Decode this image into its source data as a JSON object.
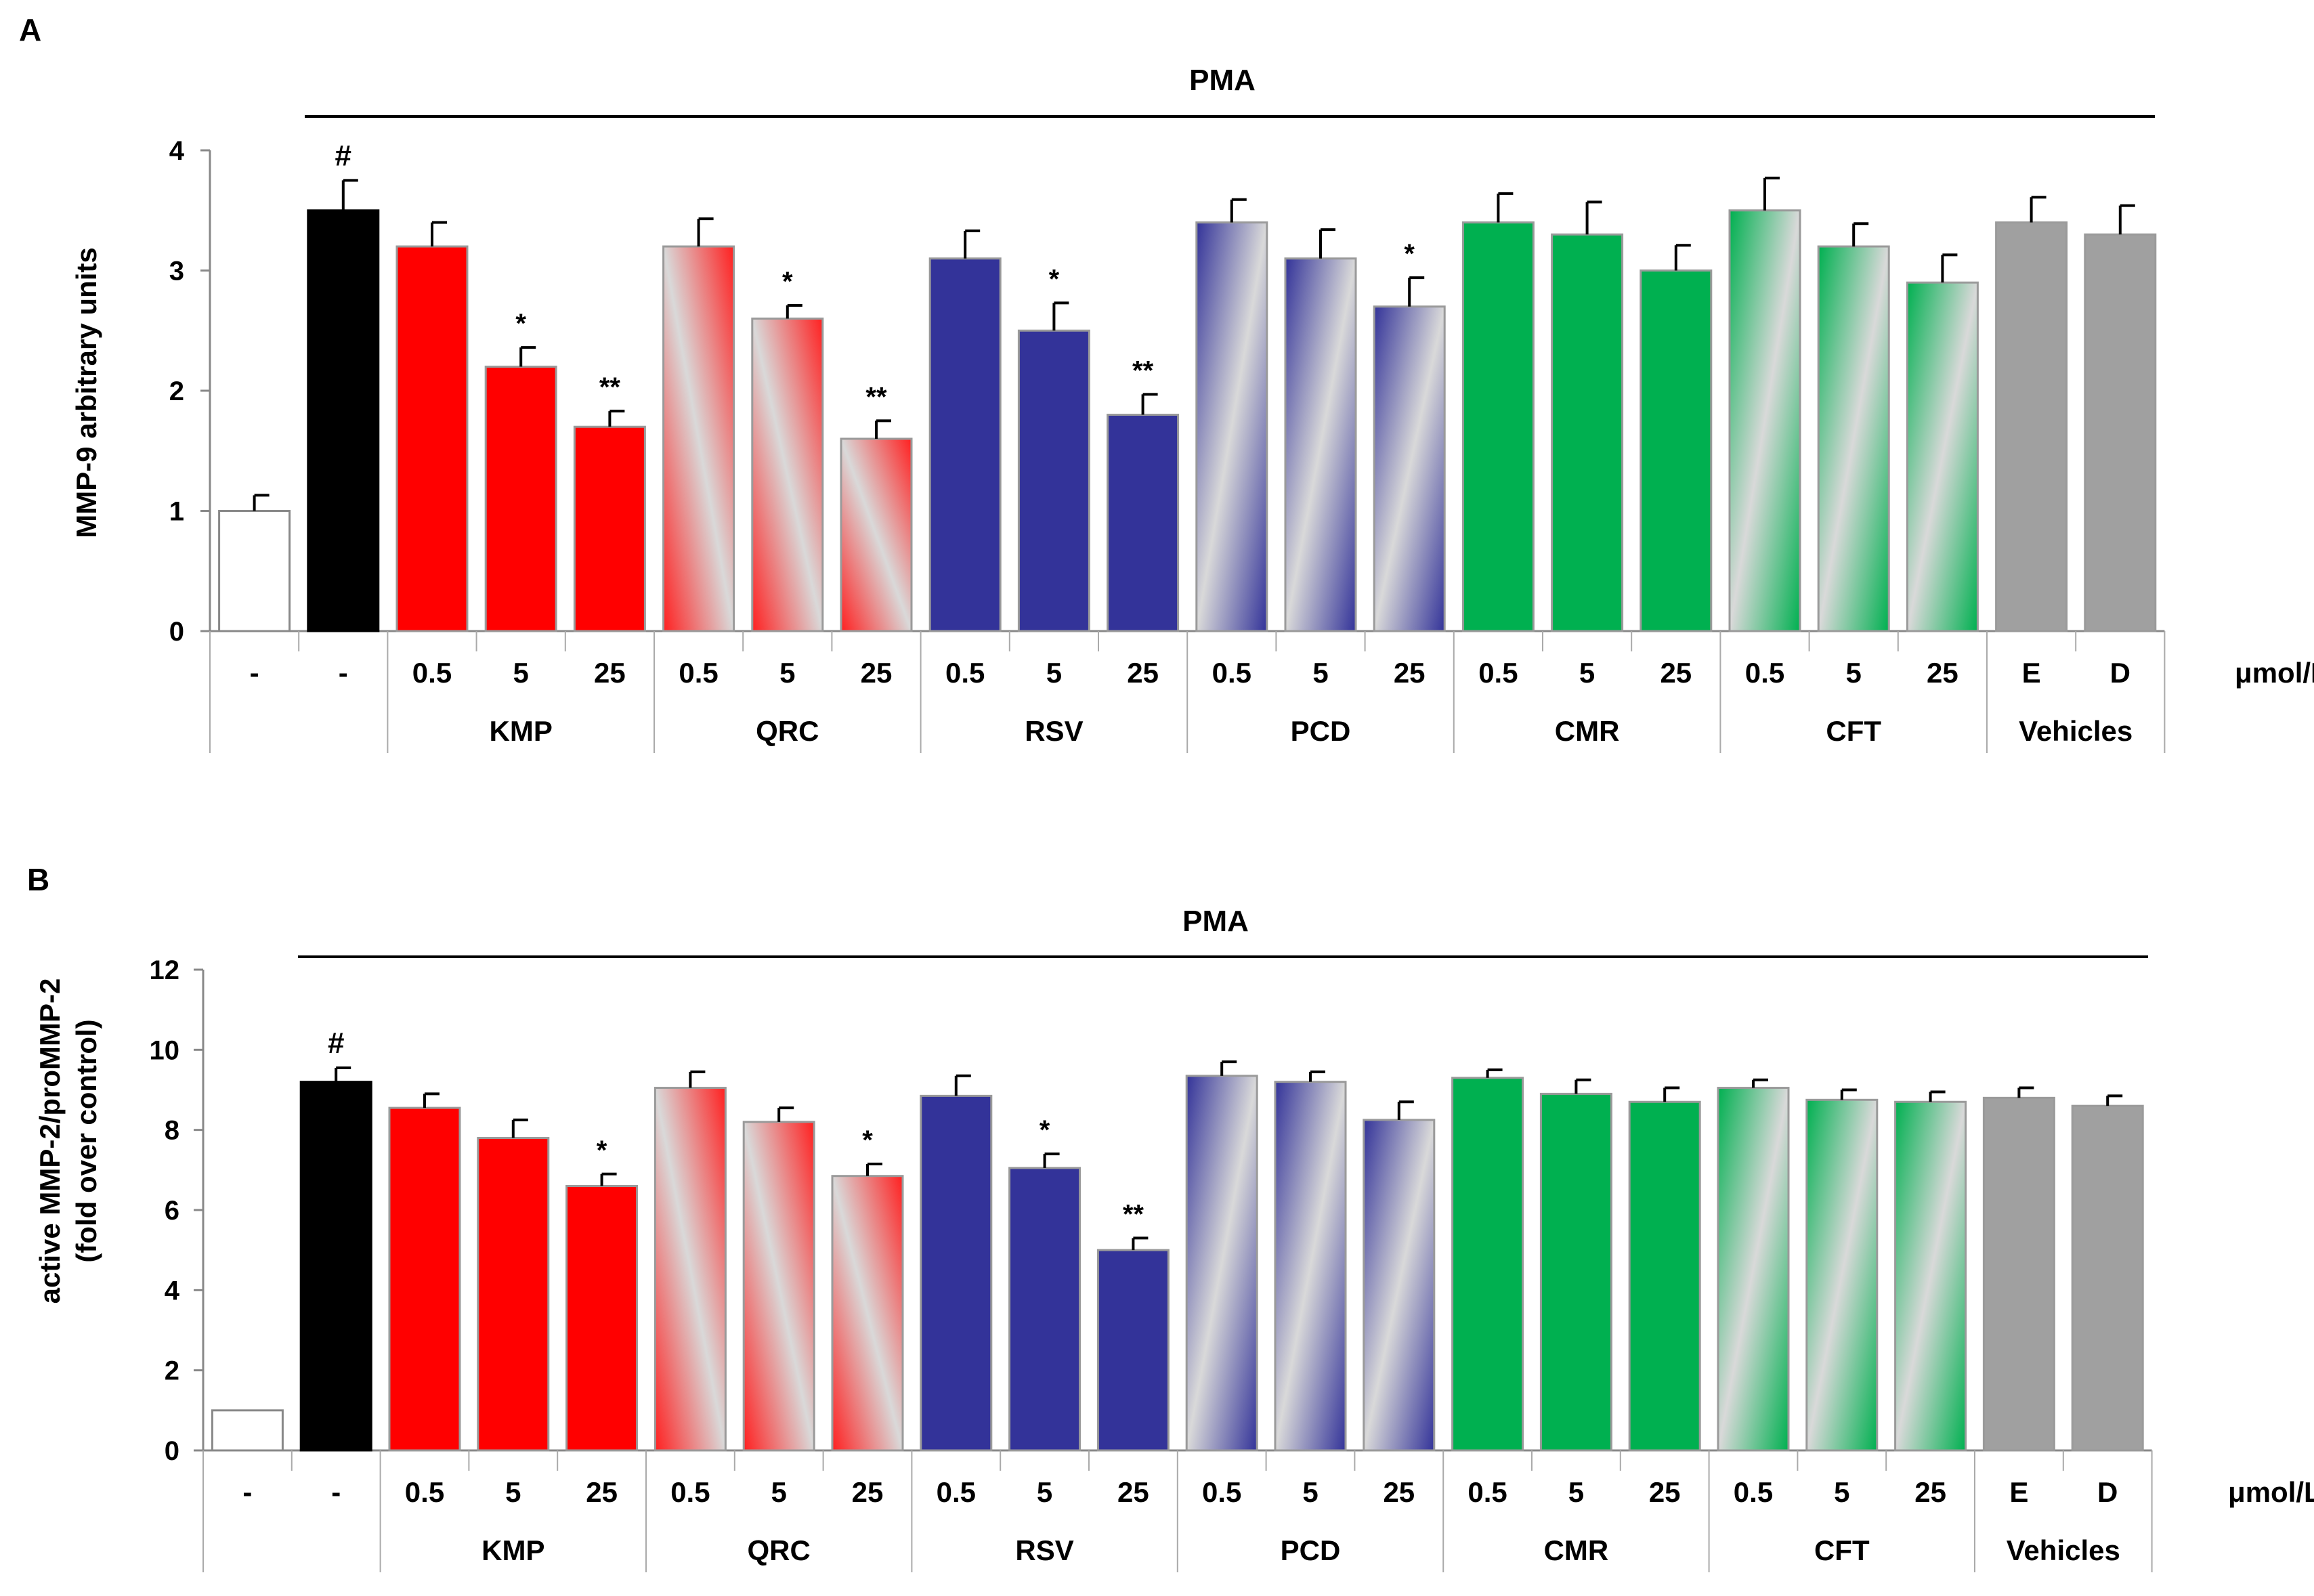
{
  "chart_data": [
    {
      "panel_label": "A",
      "type": "bar",
      "title": "PMA",
      "ylabel": "MMP-9 arbitrary units",
      "ylim": [
        0,
        4
      ],
      "yticks": [
        0,
        1,
        2,
        3,
        4
      ],
      "unit_label": "μmol/L",
      "categories": [
        "-",
        "-",
        "0.5",
        "5",
        "25",
        "0.5",
        "5",
        "25",
        "0.5",
        "5",
        "25",
        "0.5",
        "5",
        "25",
        "0.5",
        "5",
        "25",
        "0.5",
        "5",
        "25",
        "E",
        "D"
      ],
      "groups": [
        {
          "name": "KMP",
          "start": 2,
          "end": 4
        },
        {
          "name": "QRC",
          "start": 5,
          "end": 7
        },
        {
          "name": "RSV",
          "start": 8,
          "end": 10
        },
        {
          "name": "PCD",
          "start": 11,
          "end": 13
        },
        {
          "name": "CMR",
          "start": 14,
          "end": 16
        },
        {
          "name": "CFT",
          "start": 17,
          "end": 19
        },
        {
          "name": "Vehicles",
          "start": 20,
          "end": 21
        }
      ],
      "values": [
        1.0,
        3.5,
        3.2,
        2.2,
        1.7,
        3.2,
        2.6,
        1.6,
        3.1,
        2.5,
        1.8,
        3.4,
        3.1,
        2.7,
        3.4,
        3.3,
        3.0,
        3.5,
        3.2,
        2.9,
        3.4,
        3.3
      ],
      "errors": [
        0.13,
        0.25,
        0.2,
        0.16,
        0.13,
        0.23,
        0.11,
        0.15,
        0.23,
        0.23,
        0.17,
        0.19,
        0.24,
        0.24,
        0.24,
        0.27,
        0.21,
        0.27,
        0.19,
        0.23,
        0.21,
        0.24
      ],
      "styles": [
        "white",
        "black",
        "red",
        "red",
        "red",
        "red-grad",
        "red-grad",
        "red-grad",
        "blue",
        "blue",
        "blue",
        "blue-grad",
        "blue-grad",
        "blue-grad",
        "green",
        "green",
        "green",
        "green-grad",
        "green-grad",
        "green-grad",
        "gray",
        "gray"
      ],
      "annotations": [
        "",
        "#",
        "",
        "*",
        "**",
        "",
        "*",
        "**",
        "",
        "*",
        "**",
        "",
        "",
        "*",
        "",
        "",
        "",
        "",
        "",
        "",
        "",
        ""
      ]
    },
    {
      "panel_label": "B",
      "type": "bar",
      "title": "PMA",
      "ylabel": "active MMP-2/proMMP-2",
      "ylabel2": "(fold over control)",
      "ylim": [
        0,
        12
      ],
      "yticks": [
        0,
        2,
        4,
        6,
        8,
        10,
        12
      ],
      "unit_label": "μmol/L",
      "categories": [
        "-",
        "-",
        "0.5",
        "5",
        "25",
        "0.5",
        "5",
        "25",
        "0.5",
        "5",
        "25",
        "0.5",
        "5",
        "25",
        "0.5",
        "5",
        "25",
        "0.5",
        "5",
        "25",
        "E",
        "D"
      ],
      "groups": [
        {
          "name": "KMP",
          "start": 2,
          "end": 4
        },
        {
          "name": "QRC",
          "start": 5,
          "end": 7
        },
        {
          "name": "RSV",
          "start": 8,
          "end": 10
        },
        {
          "name": "PCD",
          "start": 11,
          "end": 13
        },
        {
          "name": "CMR",
          "start": 14,
          "end": 16
        },
        {
          "name": "CFT",
          "start": 17,
          "end": 19
        },
        {
          "name": "Vehicles",
          "start": 20,
          "end": 21
        }
      ],
      "values": [
        1.0,
        9.2,
        8.55,
        7.8,
        6.6,
        9.05,
        8.2,
        6.85,
        8.85,
        7.05,
        5.0,
        9.35,
        9.2,
        8.25,
        9.3,
        8.9,
        8.7,
        9.05,
        8.75,
        8.7,
        8.8,
        8.6
      ],
      "errors": [
        0,
        0.35,
        0.35,
        0.45,
        0.3,
        0.4,
        0.35,
        0.3,
        0.5,
        0.35,
        0.3,
        0.35,
        0.25,
        0.45,
        0.2,
        0.35,
        0.35,
        0.2,
        0.25,
        0.25,
        0.25,
        0.25
      ],
      "styles": [
        "white",
        "black",
        "red",
        "red",
        "red",
        "red-grad",
        "red-grad",
        "red-grad",
        "blue",
        "blue",
        "blue",
        "blue-grad",
        "blue-grad",
        "blue-grad",
        "green",
        "green",
        "green",
        "green-grad",
        "green-grad",
        "green-grad",
        "gray",
        "gray"
      ],
      "annotations": [
        "",
        "#",
        "",
        "",
        "*",
        "",
        "",
        "*",
        "",
        "*",
        "**",
        "",
        "",
        "",
        "",
        "",
        "",
        "",
        "",
        "",
        "",
        ""
      ]
    }
  ]
}
